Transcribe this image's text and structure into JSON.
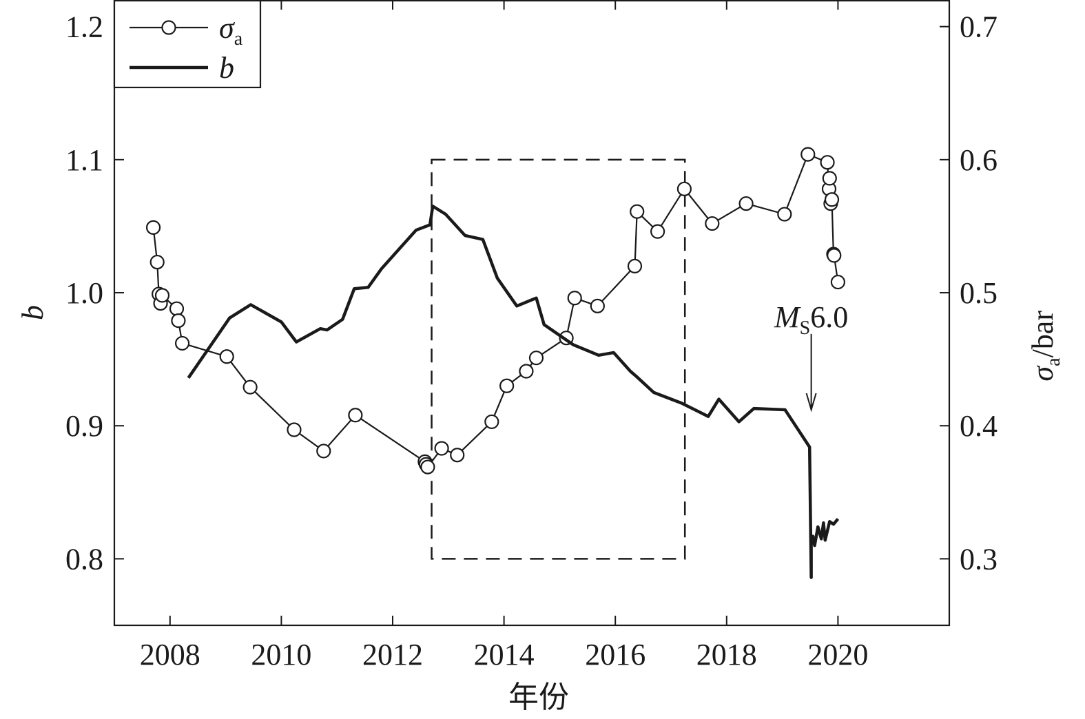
{
  "chart_data": {
    "type": "line",
    "xlabel": "年份",
    "ylabel_left": "b",
    "ylabel_right": {
      "main": "σ",
      "sub": "a",
      "suffix": "/bar"
    },
    "xlim": [
      2007,
      2022
    ],
    "ylim_left": [
      0.75,
      1.22
    ],
    "ylim_right": [
      0.25,
      0.72
    ],
    "x_ticks": [
      2008,
      2010,
      2012,
      2014,
      2016,
      2018,
      2020
    ],
    "x_tick_labels": [
      "2008",
      "2010",
      "2012",
      "2014",
      "2016",
      "2018",
      "2020"
    ],
    "y_left_ticks": [
      0.8,
      0.9,
      1.0,
      1.1,
      1.2
    ],
    "y_left_tick_labels": [
      "0.8",
      "0.9",
      "1.0",
      "1.1",
      "1.2"
    ],
    "y_right_ticks": [
      0.3,
      0.4,
      0.5,
      0.6,
      0.7
    ],
    "y_right_tick_labels": [
      "0.3",
      "0.4",
      "0.5",
      "0.6",
      "0.7"
    ],
    "legend": {
      "position": "top-left",
      "entries": [
        {
          "main": "σ",
          "sub": "a",
          "style": "line-with-circle-markers"
        },
        {
          "main": "b",
          "sub": "",
          "style": "thick-line"
        }
      ]
    },
    "series": [
      {
        "name": "σa",
        "axis": "right",
        "style": "line-with-circle-markers",
        "x": [
          2007.7,
          2007.77,
          2007.8,
          2007.83,
          2007.86,
          2008.12,
          2008.15,
          2008.22,
          2009.02,
          2009.44,
          2010.23,
          2010.76,
          2011.33,
          2012.58,
          2012.6,
          2012.63,
          2012.88,
          2013.16,
          2013.78,
          2014.05,
          2014.4,
          2014.58,
          2015.12,
          2015.27,
          2015.68,
          2016.35,
          2016.39,
          2016.76,
          2017.24,
          2017.74,
          2018.35,
          2019.04,
          2019.46,
          2019.81,
          2019.84,
          2019.85,
          2019.87,
          2019.89,
          2019.92,
          2019.93,
          2020.0
        ],
        "y": [
          0.549,
          0.523,
          0.499,
          0.492,
          0.498,
          0.488,
          0.479,
          0.462,
          0.452,
          0.429,
          0.397,
          0.381,
          0.408,
          0.373,
          0.371,
          0.369,
          0.383,
          0.378,
          0.403,
          0.43,
          0.441,
          0.451,
          0.466,
          0.496,
          0.49,
          0.52,
          0.561,
          0.546,
          0.578,
          0.552,
          0.567,
          0.559,
          0.604,
          0.598,
          0.578,
          0.586,
          0.567,
          0.57,
          0.529,
          0.528,
          0.508
        ]
      },
      {
        "name": "b",
        "axis": "left",
        "style": "thick-line",
        "x": [
          2008.33,
          2009.07,
          2009.45,
          2010.0,
          2010.27,
          2010.7,
          2010.82,
          2011.1,
          2011.31,
          2011.56,
          2011.8,
          2012.42,
          2012.67,
          2012.72,
          2012.95,
          2013.3,
          2013.62,
          2013.88,
          2014.23,
          2014.58,
          2014.72,
          2015.24,
          2015.7,
          2015.97,
          2016.27,
          2016.38,
          2016.69,
          2017.19,
          2017.67,
          2017.86,
          2018.22,
          2018.49,
          2019.05,
          2019.49,
          2019.52,
          2019.52,
          2019.55,
          2019.58,
          2019.64,
          2019.7,
          2019.74,
          2019.77,
          2019.85,
          2019.92,
          2020.0
        ],
        "y": [
          0.936,
          0.981,
          0.991,
          0.978,
          0.963,
          0.973,
          0.972,
          0.98,
          1.003,
          1.004,
          1.018,
          1.047,
          1.051,
          1.065,
          1.059,
          1.043,
          1.04,
          1.011,
          0.99,
          0.996,
          0.976,
          0.961,
          0.953,
          0.955,
          0.941,
          0.937,
          0.925,
          0.917,
          0.907,
          0.92,
          0.903,
          0.913,
          0.912,
          0.884,
          0.786,
          0.812,
          0.817,
          0.81,
          0.824,
          0.815,
          0.827,
          0.814,
          0.828,
          0.826,
          0.83
        ]
      }
    ],
    "annotations": [
      {
        "type": "dashed-box",
        "x": [
          2012.7,
          2017.25
        ],
        "y_left": [
          0.8,
          1.1
        ]
      },
      {
        "type": "arrow",
        "label_main": "M",
        "label_sub": "S",
        "label_suffix": "6.0",
        "x": 2019.52,
        "y_left_from": 0.969,
        "y_left_to": 0.912
      }
    ],
    "grid": false
  }
}
